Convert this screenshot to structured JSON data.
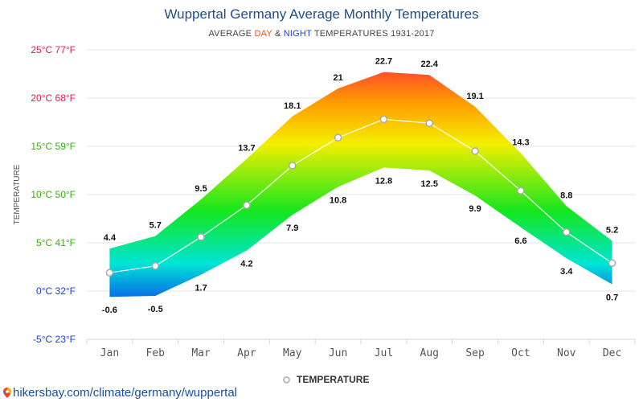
{
  "chart_data": {
    "type": "area",
    "title": "Wuppertal Germany Average Monthly Temperatures",
    "subtitle": {
      "prefix": "AVERAGE ",
      "day": "DAY",
      "amp": " & ",
      "night": "NIGHT",
      "suffix": " TEMPERATURES 1931-2017"
    },
    "ylabel": "TEMPERATURE",
    "ylim": [
      -5,
      25
    ],
    "y_ticks": [
      {
        "value": 25,
        "label": "25°C 77°F",
        "color": "#e8194b"
      },
      {
        "value": 20,
        "label": "20°C 68°F",
        "color": "#e8194b"
      },
      {
        "value": 15,
        "label": "15°C 59°F",
        "color": "#35b10a"
      },
      {
        "value": 10,
        "label": "10°C 50°F",
        "color": "#35b10a"
      },
      {
        "value": 5,
        "label": "5°C 41°F",
        "color": "#35b10a"
      },
      {
        "value": 0,
        "label": "0°C 32°F",
        "color": "#1c3fd6"
      },
      {
        "value": -5,
        "label": "-5°C 23°F",
        "color": "#1c3fd6"
      }
    ],
    "categories": [
      "Jan",
      "Feb",
      "Mar",
      "Apr",
      "May",
      "Jun",
      "Jul",
      "Aug",
      "Sep",
      "Oct",
      "Nov",
      "Dec"
    ],
    "series": [
      {
        "name": "",
        "key": "day",
        "values": [
          4.4,
          5.7,
          9.5,
          13.7,
          18.1,
          21,
          22.7,
          22.4,
          19.1,
          14.3,
          8.8,
          5.2
        ],
        "labels": [
          "4.4",
          "5.7",
          "9.5",
          "13.7",
          "18.1",
          "21",
          "22.7",
          "22.4",
          "19.1",
          "14.3",
          "8.8",
          "5.2"
        ]
      },
      {
        "name": "",
        "key": "night",
        "values": [
          -0.6,
          -0.5,
          1.7,
          4.2,
          7.9,
          10.8,
          12.8,
          12.5,
          9.9,
          6.6,
          3.4,
          0.7
        ],
        "labels": [
          "-0.6",
          "-0.5",
          "1.7",
          "4.2",
          "7.9",
          "10.8",
          "12.8",
          "12.5",
          "9.9",
          "6.6",
          "3.4",
          "0.7"
        ]
      },
      {
        "name": "TEMPERATURE",
        "key": "average",
        "values": [
          1.9,
          2.6,
          5.6,
          8.9,
          13.0,
          15.9,
          17.8,
          17.4,
          14.5,
          10.4,
          6.1,
          2.9
        ]
      }
    ],
    "grid": true,
    "legend": "bottom-center",
    "colors": {
      "hot": "#ff1a4b",
      "warm": "#ff9a00",
      "mild": "#f4ef00",
      "cool": "#14e61e",
      "cold": "#00e5d5",
      "freezing": "#0a3ef0",
      "average_line": "#ffffff",
      "marker_stroke": "#aaaaaa"
    }
  },
  "legend": {
    "label": "TEMPERATURE"
  },
  "source": {
    "text": "hikersbay.com/climate/germany/wuppertal"
  }
}
